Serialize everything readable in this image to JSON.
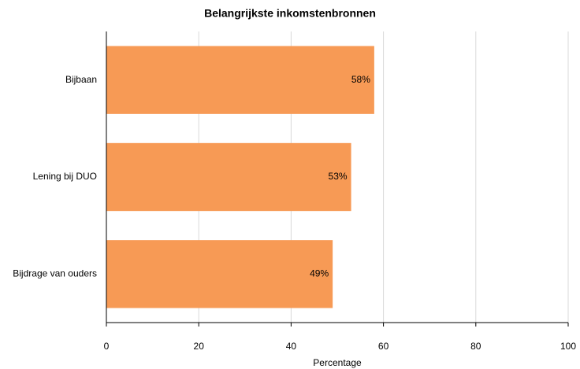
{
  "chart_data": {
    "type": "bar",
    "orientation": "horizontal",
    "title": "Belangrijkste inkomstenbronnen",
    "categories": [
      "Bijbaan",
      "Lening bij DUO",
      "Bijdrage van ouders"
    ],
    "values": [
      58,
      53,
      49
    ],
    "value_labels": [
      "58%",
      "53%",
      "49%"
    ],
    "color": "#f79a55",
    "xlabel": "Percentage",
    "xlim": [
      0,
      100
    ],
    "xticks": [
      0,
      20,
      40,
      60,
      80,
      100
    ],
    "grid": true
  }
}
